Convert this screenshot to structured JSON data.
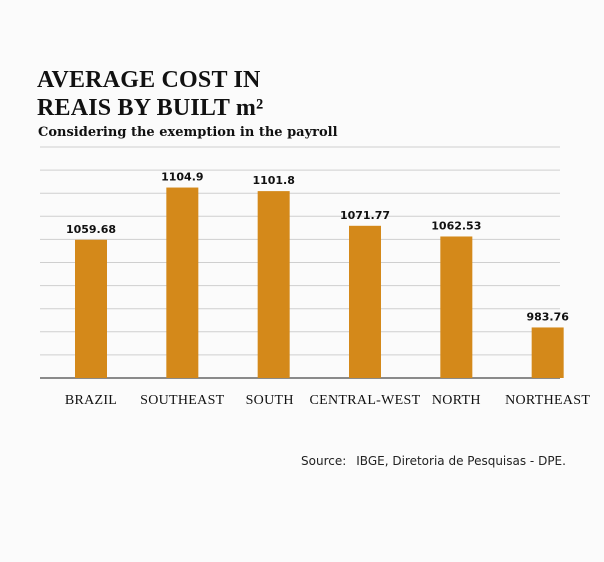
{
  "title_line1": "AVERAGE COST IN",
  "title_line2": "REAIS BY BUILT m²",
  "subtitle": "Considering the exemption in the payroll",
  "source": {
    "label": "Source:",
    "text": "IBGE, Diretoria de Pesquisas - DPE."
  },
  "chart_data": {
    "type": "bar",
    "title": "AVERAGE COST IN REAIS BY BUILT m²",
    "subtitle": "Considering the exemption in the payroll",
    "categories": [
      "BRAZIL",
      "SOUTHEAST",
      "SOUTH",
      "CENTRAL-WEST",
      "NORTH",
      "NORTHEAST"
    ],
    "values": [
      1059.68,
      1104.9,
      1101.8,
      1071.77,
      1062.53,
      983.76
    ],
    "value_labels": [
      "1059.68",
      "1104.9",
      "1101.8",
      "1071.77",
      "1062.53",
      "983.76"
    ],
    "bar_color": "#d4891a",
    "grid": true,
    "ylim": [
      940,
      1140
    ]
  }
}
